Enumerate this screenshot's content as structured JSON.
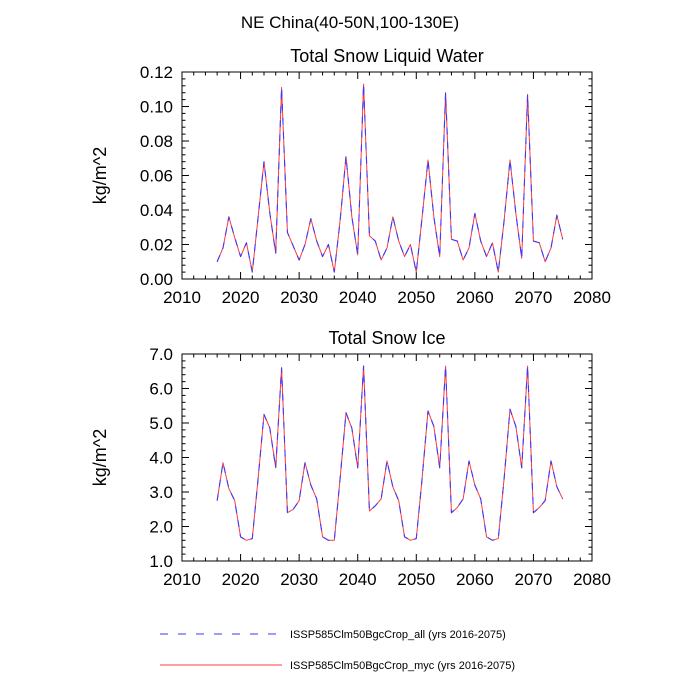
{
  "figure_title": "NE China(40-50N,100-130E)",
  "colors": {
    "series_all": "#3a3aff",
    "series_myc": "#ff3a3a"
  },
  "legend": {
    "placement": "bottom-center",
    "entries": [
      {
        "label": "ISSP585Clm50BgcCrop_all (yrs 2016-2075)",
        "style": "dashed",
        "color": "#3a3aff"
      },
      {
        "label": "ISSP585Clm50BgcCrop_myc (yrs 2016-2075)",
        "style": "solid",
        "color": "#ff3a3a"
      }
    ]
  },
  "chart_data": [
    {
      "type": "line",
      "title": "Total Snow Liquid Water",
      "xlabel": "",
      "ylabel": "kg/m^2",
      "xlim": [
        2010,
        2080
      ],
      "ylim": [
        0,
        0.12
      ],
      "xticks": [
        2010,
        2020,
        2030,
        2040,
        2050,
        2060,
        2070,
        2080
      ],
      "xtick_labels": [
        "2010",
        "2020",
        "2030",
        "2040",
        "2050",
        "2060",
        "2070",
        "2080"
      ],
      "yticks": [
        0,
        0.02,
        0.04,
        0.06,
        0.08,
        0.1,
        0.12
      ],
      "ytick_labels": [
        "0.00",
        "0.02",
        "0.04",
        "0.06",
        "0.08",
        "0.10",
        "0.12"
      ],
      "grid": false,
      "x": [
        2016,
        2017,
        2018,
        2019,
        2020,
        2021,
        2022,
        2023,
        2024,
        2025,
        2026,
        2027,
        2028,
        2029,
        2030,
        2031,
        2032,
        2033,
        2034,
        2035,
        2036,
        2037,
        2038,
        2039,
        2040,
        2041,
        2042,
        2043,
        2044,
        2045,
        2046,
        2047,
        2048,
        2049,
        2050,
        2051,
        2052,
        2053,
        2054,
        2055,
        2056,
        2057,
        2058,
        2059,
        2060,
        2061,
        2062,
        2063,
        2064,
        2065,
        2066,
        2067,
        2068,
        2069,
        2070,
        2071,
        2072,
        2073,
        2074,
        2075
      ],
      "series": [
        {
          "values": [
            0.01,
            0.018,
            0.036,
            0.024,
            0.013,
            0.021,
            0.004,
            0.036,
            0.068,
            0.038,
            0.015,
            0.111,
            0.027,
            0.019,
            0.011,
            0.02,
            0.035,
            0.022,
            0.013,
            0.02,
            0.004,
            0.034,
            0.071,
            0.036,
            0.014,
            0.113,
            0.025,
            0.022,
            0.011,
            0.018,
            0.036,
            0.022,
            0.013,
            0.02,
            0.004,
            0.036,
            0.069,
            0.036,
            0.013,
            0.108,
            0.023,
            0.022,
            0.011,
            0.018,
            0.038,
            0.022,
            0.013,
            0.021,
            0.004,
            0.034,
            0.069,
            0.038,
            0.012,
            0.107,
            0.022,
            0.021,
            0.01,
            0.018,
            0.037,
            0.023
          ]
        },
        {
          "values": [
            0.01,
            0.018,
            0.036,
            0.024,
            0.013,
            0.021,
            0.004,
            0.036,
            0.068,
            0.038,
            0.015,
            0.111,
            0.027,
            0.019,
            0.011,
            0.02,
            0.035,
            0.022,
            0.013,
            0.02,
            0.004,
            0.034,
            0.071,
            0.036,
            0.014,
            0.113,
            0.025,
            0.022,
            0.011,
            0.018,
            0.036,
            0.022,
            0.013,
            0.02,
            0.004,
            0.036,
            0.069,
            0.036,
            0.013,
            0.108,
            0.023,
            0.022,
            0.011,
            0.018,
            0.038,
            0.022,
            0.013,
            0.021,
            0.004,
            0.034,
            0.069,
            0.038,
            0.012,
            0.107,
            0.022,
            0.021,
            0.01,
            0.018,
            0.037,
            0.023
          ]
        }
      ]
    },
    {
      "type": "line",
      "title": "Total Snow Ice",
      "xlabel": "",
      "ylabel": "kg/m^2",
      "xlim": [
        2010,
        2080
      ],
      "ylim": [
        1.0,
        7.0
      ],
      "xticks": [
        2010,
        2020,
        2030,
        2040,
        2050,
        2060,
        2070,
        2080
      ],
      "xtick_labels": [
        "2010",
        "2020",
        "2030",
        "2040",
        "2050",
        "2060",
        "2070",
        "2080"
      ],
      "yticks": [
        1,
        2,
        3,
        4,
        5,
        6,
        7
      ],
      "ytick_labels": [
        "1.0",
        "2.0",
        "3.0",
        "4.0",
        "5.0",
        "6.0",
        "7.0"
      ],
      "grid": false,
      "x": [
        2016,
        2017,
        2018,
        2019,
        2020,
        2021,
        2022,
        2023,
        2024,
        2025,
        2026,
        2027,
        2028,
        2029,
        2030,
        2031,
        2032,
        2033,
        2034,
        2035,
        2036,
        2037,
        2038,
        2039,
        2040,
        2041,
        2042,
        2043,
        2044,
        2045,
        2046,
        2047,
        2048,
        2049,
        2050,
        2051,
        2052,
        2053,
        2054,
        2055,
        2056,
        2057,
        2058,
        2059,
        2060,
        2061,
        2062,
        2063,
        2064,
        2065,
        2066,
        2067,
        2068,
        2069,
        2070,
        2071,
        2072,
        2073,
        2074,
        2075
      ],
      "series": [
        {
          "values": [
            2.75,
            3.85,
            3.1,
            2.75,
            1.7,
            1.6,
            1.65,
            3.4,
            5.25,
            4.85,
            3.7,
            6.6,
            2.4,
            2.5,
            2.75,
            3.85,
            3.2,
            2.8,
            1.7,
            1.6,
            1.6,
            3.4,
            5.3,
            4.85,
            3.7,
            6.65,
            2.45,
            2.6,
            2.8,
            3.9,
            3.15,
            2.75,
            1.7,
            1.6,
            1.65,
            3.4,
            5.35,
            4.9,
            3.7,
            6.65,
            2.4,
            2.55,
            2.8,
            3.9,
            3.2,
            2.8,
            1.7,
            1.6,
            1.65,
            3.4,
            5.4,
            4.9,
            3.7,
            6.65,
            2.4,
            2.55,
            2.75,
            3.9,
            3.15,
            2.8
          ]
        },
        {
          "values": [
            2.75,
            3.85,
            3.1,
            2.75,
            1.7,
            1.6,
            1.65,
            3.4,
            5.25,
            4.85,
            3.7,
            6.6,
            2.4,
            2.5,
            2.75,
            3.85,
            3.2,
            2.8,
            1.7,
            1.6,
            1.6,
            3.4,
            5.3,
            4.85,
            3.7,
            6.65,
            2.45,
            2.6,
            2.8,
            3.9,
            3.15,
            2.75,
            1.7,
            1.6,
            1.65,
            3.4,
            5.35,
            4.9,
            3.7,
            6.65,
            2.4,
            2.55,
            2.8,
            3.9,
            3.2,
            2.8,
            1.7,
            1.6,
            1.65,
            3.4,
            5.4,
            4.9,
            3.7,
            6.65,
            2.4,
            2.55,
            2.75,
            3.9,
            3.15,
            2.8
          ]
        }
      ]
    }
  ]
}
